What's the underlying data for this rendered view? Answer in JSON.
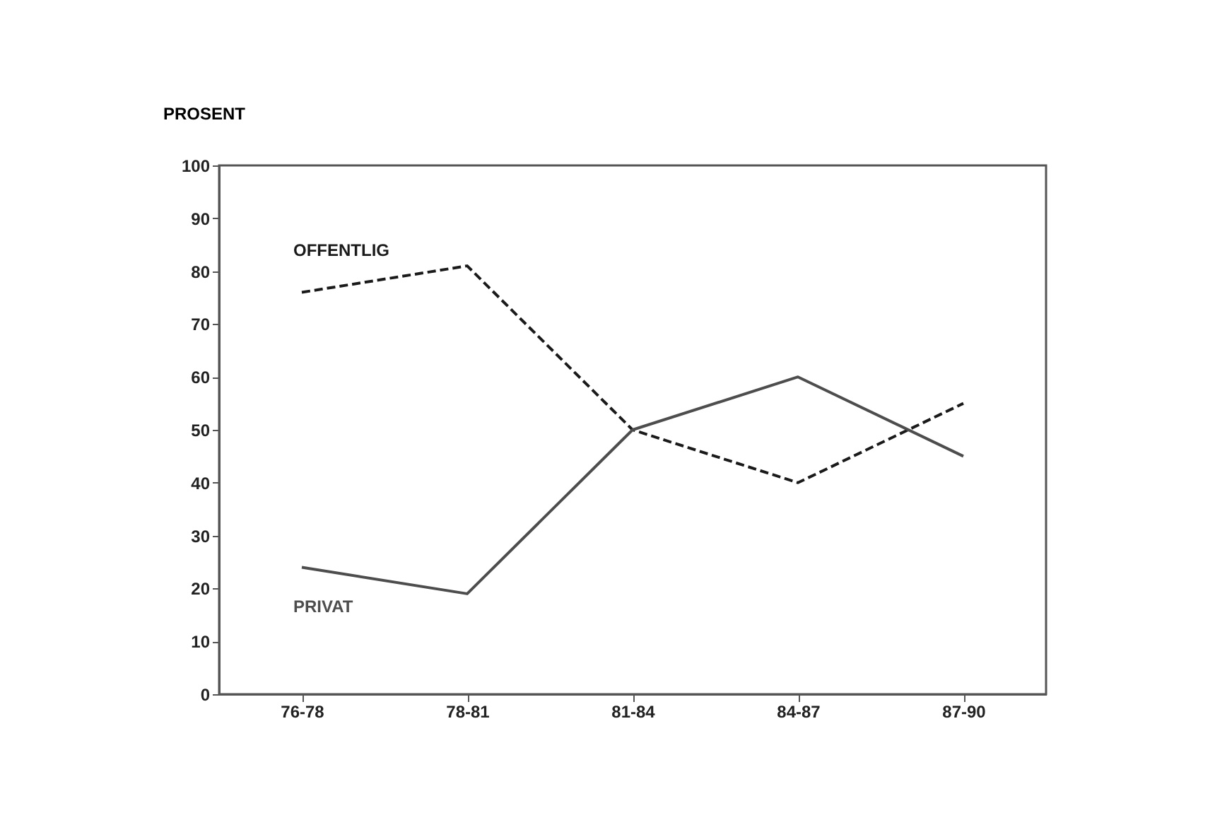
{
  "chart_data": {
    "type": "line",
    "ylabel": "PROSENT",
    "categories": [
      "76-78",
      "78-81",
      "81-84",
      "84-87",
      "87-90"
    ],
    "series": [
      {
        "name": "OFFENTLIG",
        "color": "#1a1a1a",
        "line_style": "dashed",
        "values": [
          76,
          81,
          50,
          40,
          55
        ]
      },
      {
        "name": "PRIVAT",
        "color": "#4d4d4d",
        "line_style": "solid",
        "values": [
          24,
          19,
          50,
          60,
          45
        ]
      }
    ],
    "ylim": [
      0,
      100
    ],
    "yticks": [
      0,
      10,
      20,
      30,
      40,
      50,
      60,
      70,
      80,
      90,
      100
    ],
    "grid": false,
    "legend": false,
    "marker": "none"
  }
}
